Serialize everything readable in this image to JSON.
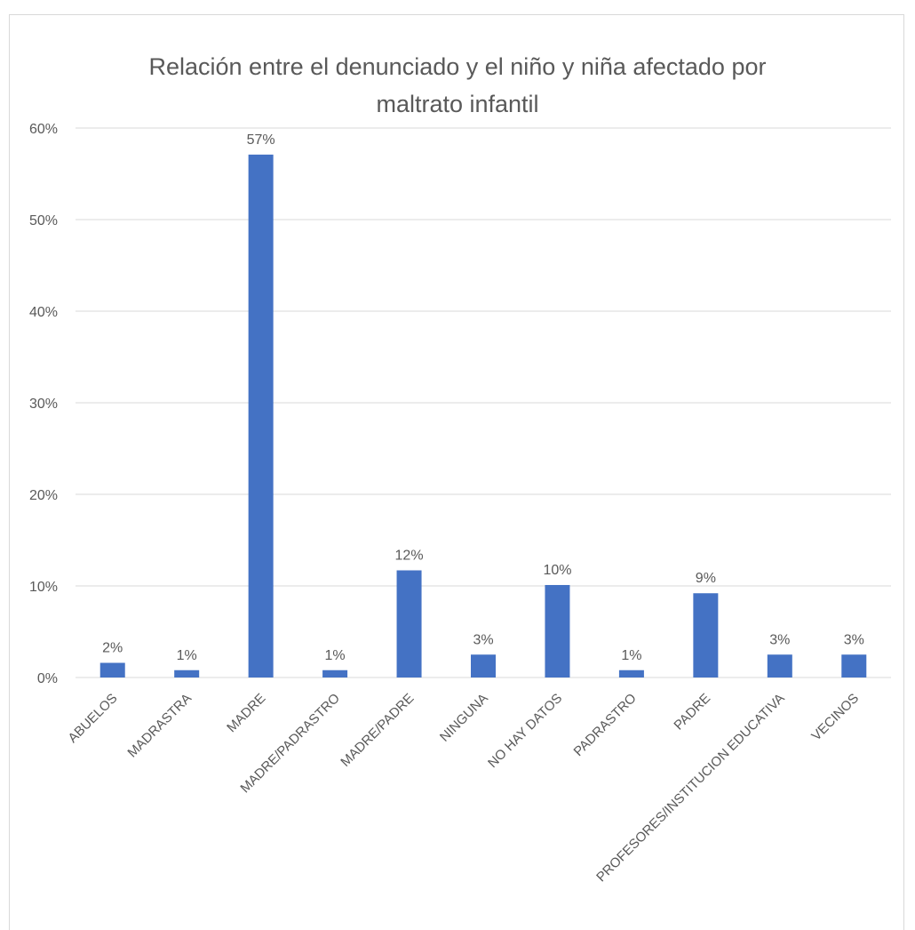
{
  "chart_data": {
    "type": "bar",
    "title_lines": [
      "Relación entre el denunciado y el niño y niña afectado por",
      "maltrato infantil"
    ],
    "title": "Relación entre el denunciado y el niño y niña afectado por maltrato infantil",
    "xlabel": "",
    "ylabel": "",
    "categories": [
      "ABUELOS",
      "MADRASTRA",
      "MADRE",
      "MADRE/PADRASTRO",
      "MADRE/PADRE",
      "NINGUNA",
      "NO HAY DATOS",
      "PADRASTRO",
      "PADRE",
      "PROFESORES/INSTITUCION EDUCATIVA",
      "VECINOS"
    ],
    "values": [
      0.016,
      0.008,
      0.571,
      0.008,
      0.117,
      0.025,
      0.101,
      0.008,
      0.092,
      0.025,
      0.025
    ],
    "data_labels": [
      "2%",
      "1%",
      "57%",
      "1%",
      "12%",
      "3%",
      "10%",
      "1%",
      "9%",
      "3%",
      "3%"
    ],
    "ylim": [
      0,
      0.6
    ],
    "yticks": [
      0,
      0.1,
      0.2,
      0.3,
      0.4,
      0.5,
      0.6
    ],
    "ytick_labels": [
      "0%",
      "10%",
      "20%",
      "30%",
      "40%",
      "50%",
      "60%"
    ],
    "grid": true,
    "legend": "none",
    "colors": {
      "bar": "#4472c4",
      "grid": "#d9d9d9",
      "text": "#595959"
    }
  }
}
